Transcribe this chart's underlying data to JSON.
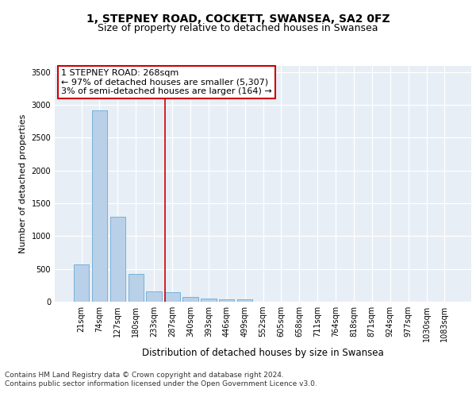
{
  "title": "1, STEPNEY ROAD, COCKETT, SWANSEA, SA2 0FZ",
  "subtitle": "Size of property relative to detached houses in Swansea",
  "xlabel": "Distribution of detached houses by size in Swansea",
  "ylabel": "Number of detached properties",
  "categories": [
    "21sqm",
    "74sqm",
    "127sqm",
    "180sqm",
    "233sqm",
    "287sqm",
    "340sqm",
    "393sqm",
    "446sqm",
    "499sqm",
    "552sqm",
    "605sqm",
    "658sqm",
    "711sqm",
    "764sqm",
    "818sqm",
    "871sqm",
    "924sqm",
    "977sqm",
    "1030sqm",
    "1083sqm"
  ],
  "values": [
    570,
    2920,
    1300,
    420,
    160,
    150,
    70,
    45,
    40,
    35,
    3,
    2,
    1,
    1,
    1,
    1,
    1,
    1,
    1,
    1,
    1
  ],
  "bar_color": "#b8d0e8",
  "bar_edge_color": "#6aaad4",
  "vline_pos": 4.6,
  "vline_color": "#cc0000",
  "annotation_text": "1 STEPNEY ROAD: 268sqm\n← 97% of detached houses are smaller (5,307)\n3% of semi-detached houses are larger (164) →",
  "annotation_box_color": "#cc0000",
  "ylim": [
    0,
    3600
  ],
  "yticks": [
    0,
    500,
    1000,
    1500,
    2000,
    2500,
    3000,
    3500
  ],
  "background_color": "#e8eef5",
  "grid_color": "#ffffff",
  "footer_text": "Contains HM Land Registry data © Crown copyright and database right 2024.\nContains public sector information licensed under the Open Government Licence v3.0.",
  "title_fontsize": 10,
  "subtitle_fontsize": 9,
  "xlabel_fontsize": 8.5,
  "ylabel_fontsize": 8,
  "tick_fontsize": 7,
  "footer_fontsize": 6.5,
  "ann_fontsize": 8
}
